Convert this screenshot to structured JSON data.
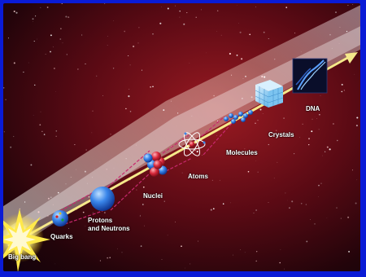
{
  "diagram": {
    "stages": [
      {
        "id": "big-bang",
        "label": "Big bang"
      },
      {
        "id": "quarks",
        "label": "Quarks"
      },
      {
        "id": "protons-neutrons",
        "label_line1": "Protons",
        "label_line2": "and Neutrons"
      },
      {
        "id": "nuclei",
        "label": "Nuclei"
      },
      {
        "id": "atoms",
        "label": "Atoms"
      },
      {
        "id": "molecules",
        "label": "Molecules"
      },
      {
        "id": "crystals",
        "label": "Crystals"
      },
      {
        "id": "dna",
        "label": "DNA"
      }
    ]
  },
  "colors": {
    "frame_border": "#0a1bd6",
    "nebula_band": "#f3d9c4",
    "arrow": "#f5e88a",
    "connector": "#c8286e",
    "sphere": "#2f7be6",
    "nucleus_red": "#d8283a",
    "nucleus_blue": "#2a62d8"
  },
  "icons": [
    "starburst-icon",
    "quark-sphere-icon",
    "proton-sphere-icon",
    "nucleus-icon",
    "atom-icon",
    "molecule-chain-icon",
    "crystal-cube-icon",
    "dna-image-icon"
  ]
}
